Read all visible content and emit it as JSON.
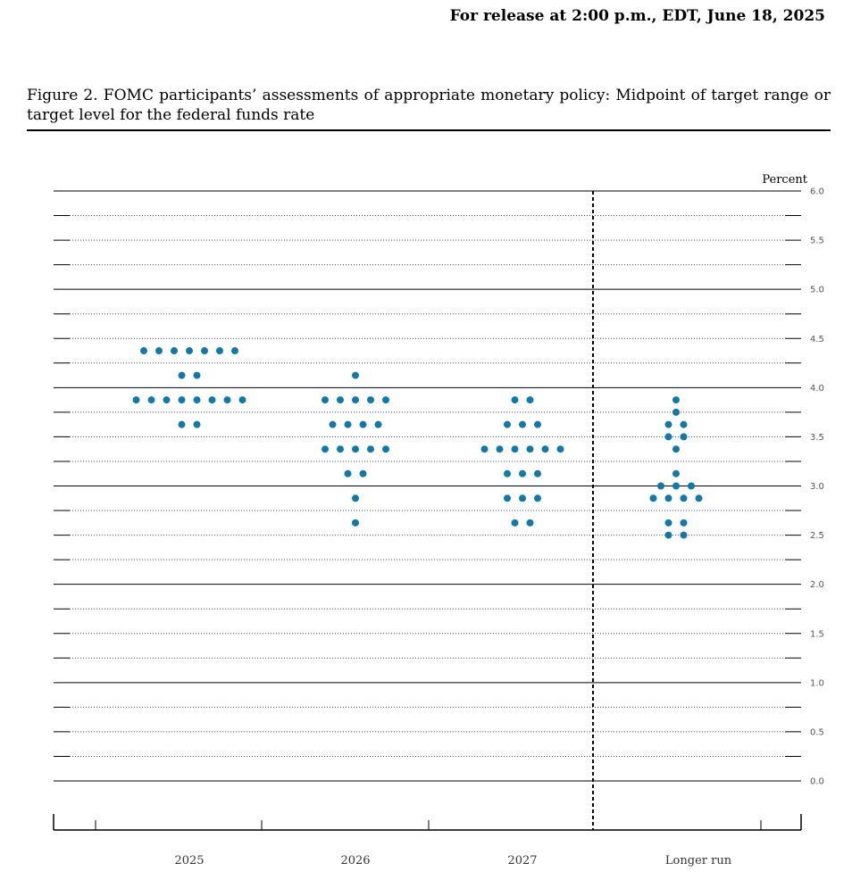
{
  "header": {
    "release": "For release at 2:00 p.m., EDT, June 18, 2025",
    "figure_title": "Figure 2.  FOMC participants’ assessments of appropriate monetary policy: Midpoint of target range or target level for the federal funds rate"
  },
  "chart_data": {
    "type": "scatter",
    "ylabel": "Percent",
    "ylim": [
      0.0,
      6.0
    ],
    "yticks": [
      "0.0",
      "0.5",
      "1.0",
      "1.5",
      "2.0",
      "2.5",
      "3.0",
      "3.5",
      "4.0",
      "4.5",
      "5.0",
      "5.5",
      "6.0"
    ],
    "categories": [
      "2025",
      "2026",
      "2027",
      "Longer run"
    ],
    "dot_color": "#1278a8",
    "columns": [
      {
        "label": "2025",
        "rows": [
          {
            "y": 4.375,
            "n": 7
          },
          {
            "y": 4.125,
            "n": 2
          },
          {
            "y": 3.875,
            "n": 8
          },
          {
            "y": 3.625,
            "n": 2
          }
        ]
      },
      {
        "label": "2026",
        "rows": [
          {
            "y": 4.125,
            "n": 1
          },
          {
            "y": 3.875,
            "n": 5
          },
          {
            "y": 3.625,
            "n": 4
          },
          {
            "y": 3.375,
            "n": 5
          },
          {
            "y": 3.125,
            "n": 2
          },
          {
            "y": 2.875,
            "n": 1
          },
          {
            "y": 2.625,
            "n": 1
          }
        ]
      },
      {
        "label": "2027",
        "rows": [
          {
            "y": 3.875,
            "n": 2
          },
          {
            "y": 3.625,
            "n": 3
          },
          {
            "y": 3.375,
            "n": 6
          },
          {
            "y": 3.125,
            "n": 3
          },
          {
            "y": 2.875,
            "n": 3
          },
          {
            "y": 2.625,
            "n": 2
          }
        ]
      },
      {
        "label": "Longer run",
        "rows": [
          {
            "y": 3.875,
            "n": 1
          },
          {
            "y": 3.75,
            "n": 1
          },
          {
            "y": 3.625,
            "n": 2
          },
          {
            "y": 3.5,
            "n": 2
          },
          {
            "y": 3.375,
            "n": 1
          },
          {
            "y": 3.125,
            "n": 1
          },
          {
            "y": 3.0,
            "n": 3
          },
          {
            "y": 2.875,
            "n": 4
          },
          {
            "y": 2.625,
            "n": 2
          },
          {
            "y": 2.5,
            "n": 2
          }
        ]
      }
    ]
  }
}
